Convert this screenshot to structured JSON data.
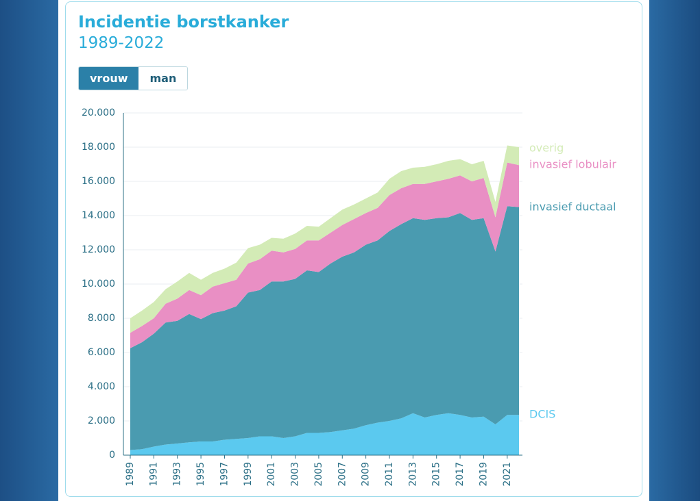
{
  "controls": {
    "options": [
      "vrouw",
      "man"
    ]
  },
  "chart_data": {
    "type": "stacked-area",
    "title": "Incidentie borstkanker",
    "subtitle": "1989-2022",
    "x": [
      1989,
      1990,
      1991,
      1992,
      1993,
      1994,
      1995,
      1996,
      1997,
      1998,
      1999,
      2000,
      2001,
      2002,
      2003,
      2004,
      2005,
      2006,
      2007,
      2008,
      2009,
      2010,
      2011,
      2012,
      2013,
      2014,
      2015,
      2016,
      2017,
      2018,
      2019,
      2020,
      2021,
      2022
    ],
    "xlim": [
      1989,
      2022
    ],
    "xticks": [
      1989,
      1991,
      1993,
      1995,
      1997,
      1999,
      2001,
      2003,
      2005,
      2007,
      2009,
      2011,
      2013,
      2015,
      2017,
      2019,
      2021
    ],
    "ylim": [
      0,
      20000
    ],
    "yticks": [
      0,
      {
        "value": 2000,
        "label": "2.000"
      },
      {
        "value": 4000,
        "label": "4.000"
      },
      {
        "value": 6000,
        "label": "6.000"
      },
      {
        "value": 8000,
        "label": "8.000"
      },
      {
        "value": 10000,
        "label": "10.000"
      },
      {
        "value": 12000,
        "label": "12.000"
      },
      {
        "value": 14000,
        "label": "14.000"
      },
      {
        "value": 16000,
        "label": "16.000"
      },
      {
        "value": 18000,
        "label": "18.000"
      },
      {
        "value": 20000,
        "label": "20.000"
      }
    ],
    "grid": true,
    "series": [
      {
        "name": "DCIS",
        "color": "#5bc9ef",
        "values": [
          300,
          350,
          500,
          620,
          680,
          750,
          800,
          800,
          900,
          950,
          1000,
          1100,
          1100,
          1000,
          1100,
          1300,
          1300,
          1350,
          1450,
          1550,
          1750,
          1900,
          2000,
          2150,
          2450,
          2200,
          2350,
          2450,
          2350,
          2200,
          2250,
          1800,
          2350,
          2350
        ]
      },
      {
        "name": "invasief ductaal",
        "color": "#4a9bb0",
        "values": [
          5950,
          6250,
          6600,
          7130,
          7170,
          7500,
          7150,
          7500,
          7550,
          7750,
          8500,
          8550,
          9050,
          9150,
          9200,
          9500,
          9400,
          9850,
          10150,
          10300,
          10550,
          10650,
          11100,
          11350,
          11400,
          11550,
          11500,
          11450,
          11800,
          11550,
          11600,
          10100,
          12200,
          12150
        ]
      },
      {
        "name": "invasief lobulair",
        "color": "#e98fc4",
        "values": [
          900,
          950,
          900,
          1100,
          1300,
          1400,
          1400,
          1550,
          1600,
          1550,
          1700,
          1800,
          1800,
          1700,
          1750,
          1750,
          1850,
          1800,
          1850,
          1950,
          1850,
          1900,
          2100,
          2100,
          2000,
          2100,
          2150,
          2250,
          2200,
          2250,
          2350,
          2000,
          2550,
          2450
        ]
      },
      {
        "name": "overig",
        "color": "#d3ebb6",
        "values": [
          850,
          900,
          950,
          850,
          1000,
          1000,
          900,
          800,
          850,
          1000,
          900,
          850,
          750,
          800,
          900,
          850,
          800,
          850,
          900,
          850,
          850,
          900,
          950,
          1000,
          950,
          1000,
          1000,
          1050,
          950,
          1000,
          1000,
          900,
          1000,
          1050
        ]
      }
    ]
  }
}
